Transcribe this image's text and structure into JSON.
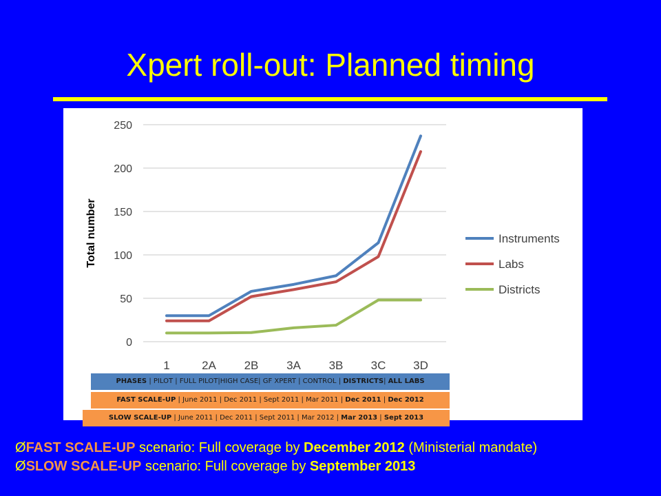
{
  "slide": {
    "title": "Xpert roll-out: Planned timing"
  },
  "chart_data": {
    "type": "line",
    "categories": [
      "1",
      "2A",
      "2B",
      "3A",
      "3B",
      "3C",
      "3D"
    ],
    "ylabel": "Total number",
    "xlabel": "",
    "ylim": [
      0,
      250
    ],
    "yticks": [
      0,
      50,
      100,
      150,
      200,
      250
    ],
    "grid": true,
    "legend_position": "right",
    "series": [
      {
        "name": "Instruments",
        "color": "#4f81bd",
        "values": [
          30,
          30,
          58,
          66,
          76,
          114,
          237
        ]
      },
      {
        "name": "Labs",
        "color": "#c0504d",
        "values": [
          24,
          24,
          52,
          60,
          69,
          98,
          219
        ]
      },
      {
        "name": "Districts",
        "color": "#9bbb59",
        "values": [
          10,
          10,
          10.5,
          16,
          19,
          48,
          48
        ]
      }
    ]
  },
  "timeline": {
    "phases": {
      "label": "PHASES",
      "items": [
        "PILOT",
        "FULL PILOT",
        "HIGH CASE",
        "GF XPERT",
        "CONTROL",
        "DISTRICTS",
        "ALL LABS"
      ]
    },
    "fast": {
      "label": "FAST SCALE-UP",
      "items": [
        "June 2011",
        "Dec 2011",
        "Sept 2011",
        "Mar 2011",
        "Dec 2011",
        "Dec 2012"
      ]
    },
    "slow": {
      "label": "SLOW SCALE-UP",
      "items": [
        "June 2011",
        "Dec 2011",
        "Sept 2011",
        "Mar 2012",
        "Mar 2013",
        "Sept 2013"
      ]
    }
  },
  "scenarios": {
    "fast": {
      "arrow": "Ø",
      "name": "FAST SCALE-UP",
      "text": " scenario: Full coverage by ",
      "date": "December 2012",
      "note": " (Ministerial mandate)"
    },
    "slow": {
      "arrow": "Ø",
      "name": "SLOW SCALE-UP",
      "text": " scenario: Full coverage by ",
      "date": "September 2013"
    }
  }
}
